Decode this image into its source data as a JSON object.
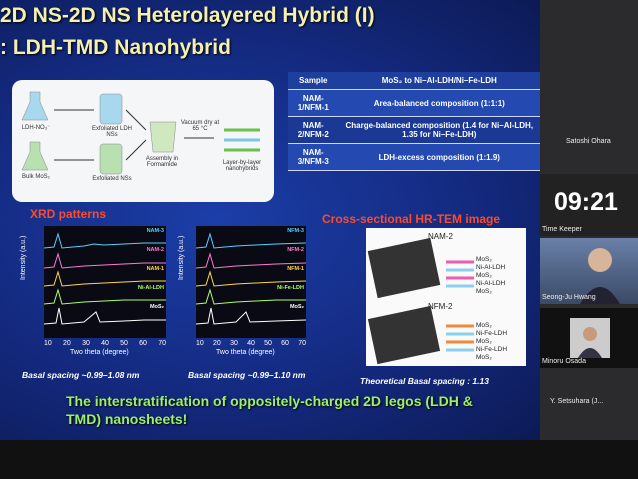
{
  "slide": {
    "title": "2D NS-2D NS Heterolayered Hybrid (I)",
    "subtitle": ": LDH-TMD Nanohybrid",
    "scheme": [
      "LDH-NO₃⁻",
      "Exfoliated LDH NSs",
      "Bulk MoS₂",
      "Exfoliated NSs",
      "Assembly in Formamide",
      "Vacuum dry at 65 °C",
      "Layer-by-layer nanohybrids"
    ],
    "table": {
      "header": [
        "Sample",
        "MoS₂ to Ni–Al-LDH/Ni–Fe-LDH"
      ],
      "rows": [
        [
          "NAM-1/NFM-1",
          "Area-balanced composition (1:1:1)"
        ],
        [
          "NAM-2/NFM-2",
          "Charge-balanced composition (1.4 for Ni–Al-LDH, 1.35 for Ni–Fe-LDH)"
        ],
        [
          "NAM-3/NFM-3",
          "LDH-excess composition (1:1.9)"
        ]
      ]
    },
    "xrd_label": "XRD patterns",
    "tem_label": "Cross-sectional HR-TEM image",
    "xrd_ylabel": "Intensity (a.u.)",
    "xrd_xlabel": "Two theta (degree)",
    "xrd_ticks": [
      "10",
      "20",
      "30",
      "40",
      "50",
      "60",
      "70"
    ],
    "xrd_curves_1": [
      "NAM-3",
      "NAM-2",
      "NAM-1",
      "Ni-Al-LDH",
      "MoS₂"
    ],
    "xrd_curves_2": [
      "NFM-3",
      "NFM-2",
      "NFM-1",
      "Ni-Fe-LDH",
      "MoS₂"
    ],
    "tem": [
      {
        "name": "NAM-2",
        "layers": [
          "MoS₂",
          "Ni-Al-LDH",
          "MoS₂",
          "Ni-Al-LDH",
          "MoS₂"
        ]
      },
      {
        "name": "NFM-2",
        "layers": [
          "MoS₂",
          "Ni-Fe-LDH",
          "MoS₂",
          "Ni-Fe-LDH",
          "MoS₂"
        ]
      }
    ],
    "captions": [
      "Basal spacing ~0.99–1.08 nm",
      "Basal spacing ~0.99–1.10 nm",
      "Theoretical Basal spacing : 1.13"
    ],
    "conclusion": "The interstratification of oppositely-charged 2D legos (LDH & TMD) nanosheets!"
  },
  "panel": {
    "participants": [
      "Satoshi Ohara",
      "Seong-Ju Hwang",
      "Minoru Osada",
      "Y. Setsuhara (J..."
    ],
    "timer": "09:21",
    "timer_label": "Time Keeper"
  }
}
